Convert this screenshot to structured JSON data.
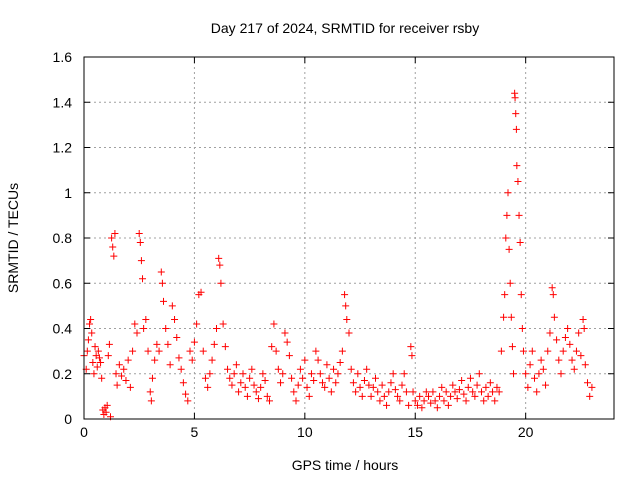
{
  "chart_data": {
    "type": "scatter",
    "title": "Day 217 of 2024, SRMTID for receiver rsby",
    "xlabel": "GPS time / hours",
    "ylabel": "SRMTID / TECUs",
    "xlim": [
      0,
      24
    ],
    "ylim": [
      0,
      1.6
    ],
    "xticks": [
      0,
      5,
      10,
      15,
      20
    ],
    "xtick_labels": [
      "0",
      "5",
      "10",
      "15",
      "20"
    ],
    "yticks": [
      0,
      0.2,
      0.4,
      0.6,
      0.8,
      1,
      1.2,
      1.4,
      1.6
    ],
    "ytick_labels": [
      "0",
      "0.2",
      "0.4",
      "0.6",
      "0.8",
      "1",
      "1.2",
      "1.4",
      "1.6"
    ],
    "grid": true,
    "marker": "+",
    "marker_color": "#ff0000",
    "series": [
      {
        "name": "SRMTID",
        "points": [
          [
            0.0,
            0.28
          ],
          [
            0.1,
            0.22
          ],
          [
            0.15,
            0.3
          ],
          [
            0.2,
            0.35
          ],
          [
            0.25,
            0.42
          ],
          [
            0.3,
            0.44
          ],
          [
            0.35,
            0.38
          ],
          [
            0.4,
            0.25
          ],
          [
            0.45,
            0.2
          ],
          [
            0.5,
            0.32
          ],
          [
            0.55,
            0.28
          ],
          [
            0.6,
            0.23
          ],
          [
            0.65,
            0.3
          ],
          [
            0.7,
            0.27
          ],
          [
            0.75,
            0.25
          ],
          [
            0.8,
            0.18
          ],
          [
            0.85,
            0.04
          ],
          [
            0.9,
            0.02
          ],
          [
            0.95,
            0.05
          ],
          [
            1.0,
            0.03
          ],
          [
            1.05,
            0.06
          ],
          [
            1.1,
            0.28
          ],
          [
            1.15,
            0.33
          ],
          [
            1.2,
            0.01
          ],
          [
            1.25,
            0.8
          ],
          [
            1.3,
            0.76
          ],
          [
            1.35,
            0.72
          ],
          [
            1.4,
            0.82
          ],
          [
            1.45,
            0.2
          ],
          [
            1.5,
            0.15
          ],
          [
            1.6,
            0.24
          ],
          [
            1.7,
            0.19
          ],
          [
            1.8,
            0.22
          ],
          [
            1.9,
            0.17
          ],
          [
            2.0,
            0.26
          ],
          [
            2.1,
            0.14
          ],
          [
            2.2,
            0.3
          ],
          [
            2.3,
            0.42
          ],
          [
            2.4,
            0.38
          ],
          [
            2.5,
            0.82
          ],
          [
            2.55,
            0.78
          ],
          [
            2.6,
            0.7
          ],
          [
            2.65,
            0.62
          ],
          [
            2.7,
            0.4
          ],
          [
            2.8,
            0.44
          ],
          [
            2.9,
            0.3
          ],
          [
            3.0,
            0.12
          ],
          [
            3.05,
            0.08
          ],
          [
            3.1,
            0.18
          ],
          [
            3.2,
            0.26
          ],
          [
            3.3,
            0.33
          ],
          [
            3.4,
            0.3
          ],
          [
            3.5,
            0.65
          ],
          [
            3.55,
            0.6
          ],
          [
            3.6,
            0.52
          ],
          [
            3.7,
            0.4
          ],
          [
            3.8,
            0.33
          ],
          [
            3.9,
            0.24
          ],
          [
            4.0,
            0.5
          ],
          [
            4.1,
            0.44
          ],
          [
            4.2,
            0.36
          ],
          [
            4.3,
            0.27
          ],
          [
            4.4,
            0.22
          ],
          [
            4.5,
            0.16
          ],
          [
            4.6,
            0.11
          ],
          [
            4.7,
            0.08
          ],
          [
            4.8,
            0.3
          ],
          [
            4.9,
            0.26
          ],
          [
            5.0,
            0.34
          ],
          [
            5.1,
            0.42
          ],
          [
            5.2,
            0.55
          ],
          [
            5.3,
            0.56
          ],
          [
            5.4,
            0.3
          ],
          [
            5.5,
            0.18
          ],
          [
            5.6,
            0.14
          ],
          [
            5.7,
            0.2
          ],
          [
            5.8,
            0.26
          ],
          [
            5.9,
            0.33
          ],
          [
            6.0,
            0.4
          ],
          [
            6.1,
            0.71
          ],
          [
            6.15,
            0.68
          ],
          [
            6.2,
            0.6
          ],
          [
            6.3,
            0.42
          ],
          [
            6.4,
            0.32
          ],
          [
            6.5,
            0.22
          ],
          [
            6.6,
            0.18
          ],
          [
            6.7,
            0.15
          ],
          [
            6.8,
            0.2
          ],
          [
            6.9,
            0.24
          ],
          [
            7.0,
            0.12
          ],
          [
            7.1,
            0.16
          ],
          [
            7.2,
            0.2
          ],
          [
            7.3,
            0.14
          ],
          [
            7.4,
            0.1
          ],
          [
            7.5,
            0.18
          ],
          [
            7.6,
            0.22
          ],
          [
            7.7,
            0.15
          ],
          [
            7.8,
            0.12
          ],
          [
            7.9,
            0.09
          ],
          [
            8.0,
            0.14
          ],
          [
            8.1,
            0.2
          ],
          [
            8.2,
            0.17
          ],
          [
            8.3,
            0.1
          ],
          [
            8.4,
            0.08
          ],
          [
            8.5,
            0.32
          ],
          [
            8.6,
            0.42
          ],
          [
            8.7,
            0.3
          ],
          [
            8.8,
            0.22
          ],
          [
            8.9,
            0.16
          ],
          [
            9.0,
            0.2
          ],
          [
            9.1,
            0.38
          ],
          [
            9.2,
            0.34
          ],
          [
            9.3,
            0.28
          ],
          [
            9.4,
            0.18
          ],
          [
            9.5,
            0.12
          ],
          [
            9.6,
            0.08
          ],
          [
            9.7,
            0.15
          ],
          [
            9.8,
            0.22
          ],
          [
            9.9,
            0.18
          ],
          [
            10.0,
            0.26
          ],
          [
            10.1,
            0.14
          ],
          [
            10.2,
            0.1
          ],
          [
            10.3,
            0.2
          ],
          [
            10.4,
            0.17
          ],
          [
            10.5,
            0.3
          ],
          [
            10.6,
            0.26
          ],
          [
            10.7,
            0.2
          ],
          [
            10.8,
            0.16
          ],
          [
            10.9,
            0.14
          ],
          [
            11.0,
            0.24
          ],
          [
            11.1,
            0.18
          ],
          [
            11.2,
            0.12
          ],
          [
            11.3,
            0.22
          ],
          [
            11.4,
            0.16
          ],
          [
            11.5,
            0.2
          ],
          [
            11.6,
            0.25
          ],
          [
            11.7,
            0.3
          ],
          [
            11.8,
            0.55
          ],
          [
            11.85,
            0.5
          ],
          [
            11.9,
            0.44
          ],
          [
            12.0,
            0.38
          ],
          [
            12.1,
            0.22
          ],
          [
            12.2,
            0.16
          ],
          [
            12.3,
            0.12
          ],
          [
            12.4,
            0.2
          ],
          [
            12.5,
            0.14
          ],
          [
            12.6,
            0.1
          ],
          [
            12.7,
            0.17
          ],
          [
            12.8,
            0.22
          ],
          [
            12.9,
            0.15
          ],
          [
            13.0,
            0.1
          ],
          [
            13.1,
            0.14
          ],
          [
            13.2,
            0.18
          ],
          [
            13.3,
            0.12
          ],
          [
            13.4,
            0.08
          ],
          [
            13.5,
            0.15
          ],
          [
            13.6,
            0.1
          ],
          [
            13.7,
            0.06
          ],
          [
            13.8,
            0.12
          ],
          [
            13.9,
            0.16
          ],
          [
            14.0,
            0.2
          ],
          [
            14.1,
            0.13
          ],
          [
            14.2,
            0.1
          ],
          [
            14.3,
            0.08
          ],
          [
            14.4,
            0.15
          ],
          [
            14.5,
            0.2
          ],
          [
            14.6,
            0.12
          ],
          [
            14.7,
            0.06
          ],
          [
            14.8,
            0.32
          ],
          [
            14.85,
            0.28
          ],
          [
            14.9,
            0.12
          ],
          [
            15.0,
            0.08
          ],
          [
            15.1,
            0.06
          ],
          [
            15.2,
            0.1
          ],
          [
            15.3,
            0.05
          ],
          [
            15.4,
            0.08
          ],
          [
            15.5,
            0.12
          ],
          [
            15.6,
            0.1
          ],
          [
            15.7,
            0.07
          ],
          [
            15.8,
            0.12
          ],
          [
            15.9,
            0.08
          ],
          [
            16.0,
            0.05
          ],
          [
            16.1,
            0.1
          ],
          [
            16.2,
            0.14
          ],
          [
            16.3,
            0.08
          ],
          [
            16.4,
            0.12
          ],
          [
            16.5,
            0.06
          ],
          [
            16.6,
            0.1
          ],
          [
            16.7,
            0.15
          ],
          [
            16.8,
            0.12
          ],
          [
            16.9,
            0.09
          ],
          [
            17.0,
            0.13
          ],
          [
            17.1,
            0.17
          ],
          [
            17.2,
            0.11
          ],
          [
            17.3,
            0.08
          ],
          [
            17.4,
            0.14
          ],
          [
            17.5,
            0.18
          ],
          [
            17.6,
            0.12
          ],
          [
            17.7,
            0.1
          ],
          [
            17.8,
            0.15
          ],
          [
            17.9,
            0.2
          ],
          [
            18.0,
            0.12
          ],
          [
            18.1,
            0.08
          ],
          [
            18.2,
            0.14
          ],
          [
            18.3,
            0.1
          ],
          [
            18.4,
            0.16
          ],
          [
            18.5,
            0.12
          ],
          [
            18.6,
            0.08
          ],
          [
            18.7,
            0.14
          ],
          [
            18.8,
            0.12
          ],
          [
            18.9,
            0.3
          ],
          [
            19.0,
            0.45
          ],
          [
            19.05,
            0.55
          ],
          [
            19.1,
            0.8
          ],
          [
            19.15,
            0.9
          ],
          [
            19.2,
            1.0
          ],
          [
            19.25,
            0.75
          ],
          [
            19.3,
            0.6
          ],
          [
            19.35,
            0.45
          ],
          [
            19.4,
            0.32
          ],
          [
            19.45,
            0.2
          ],
          [
            19.5,
            1.44
          ],
          [
            19.52,
            1.42
          ],
          [
            19.55,
            1.35
          ],
          [
            19.58,
            1.28
          ],
          [
            19.6,
            1.12
          ],
          [
            19.65,
            1.05
          ],
          [
            19.7,
            0.9
          ],
          [
            19.75,
            0.78
          ],
          [
            19.8,
            0.55
          ],
          [
            19.85,
            0.4
          ],
          [
            19.9,
            0.3
          ],
          [
            20.0,
            0.2
          ],
          [
            20.1,
            0.14
          ],
          [
            20.2,
            0.24
          ],
          [
            20.3,
            0.3
          ],
          [
            20.4,
            0.18
          ],
          [
            20.5,
            0.12
          ],
          [
            20.6,
            0.2
          ],
          [
            20.7,
            0.26
          ],
          [
            20.8,
            0.22
          ],
          [
            20.9,
            0.15
          ],
          [
            21.0,
            0.3
          ],
          [
            21.1,
            0.38
          ],
          [
            21.2,
            0.58
          ],
          [
            21.25,
            0.55
          ],
          [
            21.3,
            0.45
          ],
          [
            21.4,
            0.35
          ],
          [
            21.5,
            0.26
          ],
          [
            21.6,
            0.2
          ],
          [
            21.7,
            0.3
          ],
          [
            21.8,
            0.36
          ],
          [
            21.9,
            0.4
          ],
          [
            22.0,
            0.33
          ],
          [
            22.1,
            0.26
          ],
          [
            22.2,
            0.22
          ],
          [
            22.3,
            0.3
          ],
          [
            22.4,
            0.38
          ],
          [
            22.5,
            0.28
          ],
          [
            22.6,
            0.44
          ],
          [
            22.65,
            0.4
          ],
          [
            22.7,
            0.24
          ],
          [
            22.8,
            0.16
          ],
          [
            22.9,
            0.1
          ],
          [
            23.0,
            0.14
          ]
        ]
      }
    ]
  }
}
